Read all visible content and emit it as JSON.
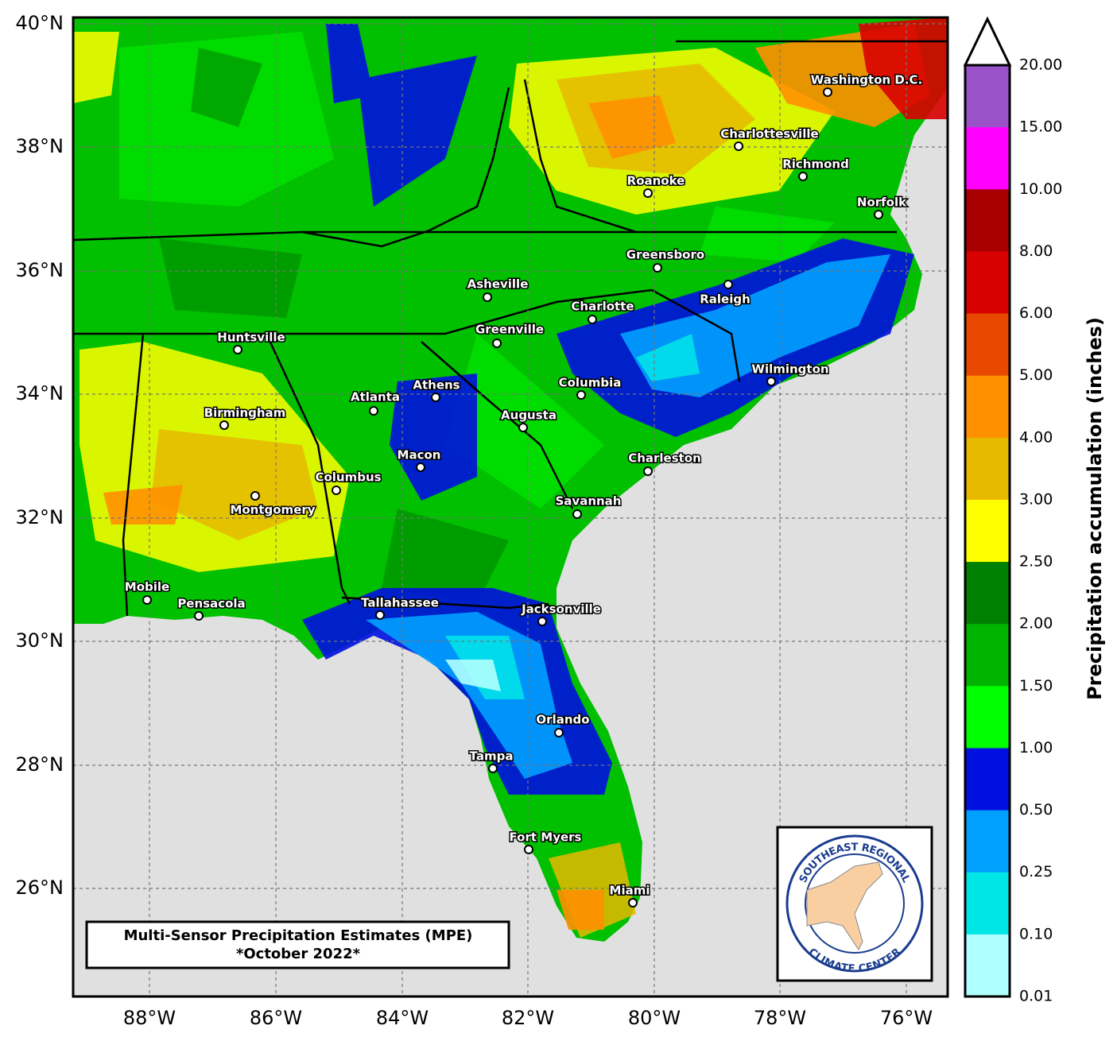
{
  "map": {
    "lat_labels": [
      "40°N",
      "38°N",
      "36°N",
      "34°N",
      "32°N",
      "30°N",
      "28°N",
      "26°N"
    ],
    "lon_labels": [
      "88°W",
      "86°W",
      "84°W",
      "82°W",
      "80°W",
      "78°W",
      "76°W"
    ],
    "cities": [
      "Washington D.C.",
      "Charlottesville",
      "Richmond",
      "Roanoke",
      "Norfolk",
      "Greensboro",
      "Raleigh",
      "Asheville",
      "Charlotte",
      "Greenville",
      "Huntsville",
      "Wilmington",
      "Columbia",
      "Athens",
      "Atlanta",
      "Birmingham",
      "Augusta",
      "Charleston",
      "Macon",
      "Columbus",
      "Montgomery",
      "Savannah",
      "Mobile",
      "Pensacola",
      "Tallahassee",
      "Jacksonville",
      "Orlando",
      "Tampa",
      "Fort Myers",
      "Miami"
    ],
    "colorbar": {
      "title": "Precipitation accumulation (inches)",
      "labels": [
        "20.00",
        "15.00",
        "10.00",
        "8.00",
        "6.00",
        "5.00",
        "4.00",
        "3.00",
        "2.50",
        "2.00",
        "1.50",
        "1.00",
        "0.50",
        "0.25",
        "0.10",
        "0.01"
      ]
    },
    "title_box": {
      "line1": "Multi-Sensor Precipitation Estimates (MPE)",
      "line2": "*October 2022*"
    },
    "logo": {
      "top": "SOUTHEAST REGIONAL",
      "bottom": "CLIMATE CENTER"
    }
  }
}
